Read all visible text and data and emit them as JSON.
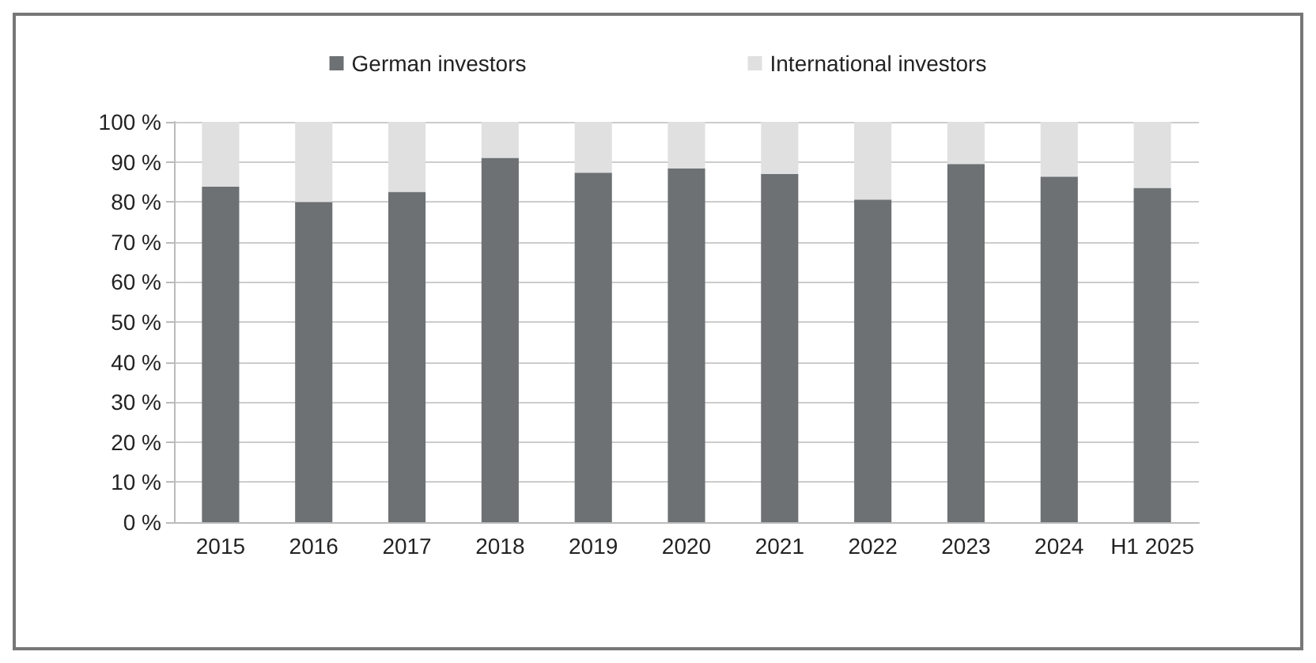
{
  "chart_data": {
    "type": "bar",
    "stacked": true,
    "categories": [
      "2015",
      "2016",
      "2017",
      "2018",
      "2019",
      "2020",
      "2021",
      "2022",
      "2023",
      "2024",
      "H1 2025"
    ],
    "series": [
      {
        "name": "German investors",
        "color": "#6d7174",
        "values": [
          83.8,
          80,
          82.5,
          91,
          87.3,
          88.4,
          87,
          80.6,
          89.5,
          86.3,
          83.5
        ]
      },
      {
        "name": "International investors",
        "color": "#e0e0e0",
        "values": [
          16.2,
          20,
          17.5,
          9,
          12.7,
          11.6,
          13,
          19.4,
          10.5,
          13.7,
          16.5
        ]
      }
    ],
    "ylim": [
      0,
      100
    ],
    "yticks": [
      {
        "value": 0,
        "label": "0 %"
      },
      {
        "value": 10,
        "label": "10 %"
      },
      {
        "value": 20,
        "label": "20 %"
      },
      {
        "value": 30,
        "label": "30 %"
      },
      {
        "value": 40,
        "label": "40 %"
      },
      {
        "value": 50,
        "label": "50 %"
      },
      {
        "value": 60,
        "label": "60 %"
      },
      {
        "value": 70,
        "label": "70 %"
      },
      {
        "value": 80,
        "label": "80 %"
      },
      {
        "value": 90,
        "label": "90 %"
      },
      {
        "value": 100,
        "label": "100 %"
      }
    ],
    "grid": "y",
    "legend": "top"
  }
}
